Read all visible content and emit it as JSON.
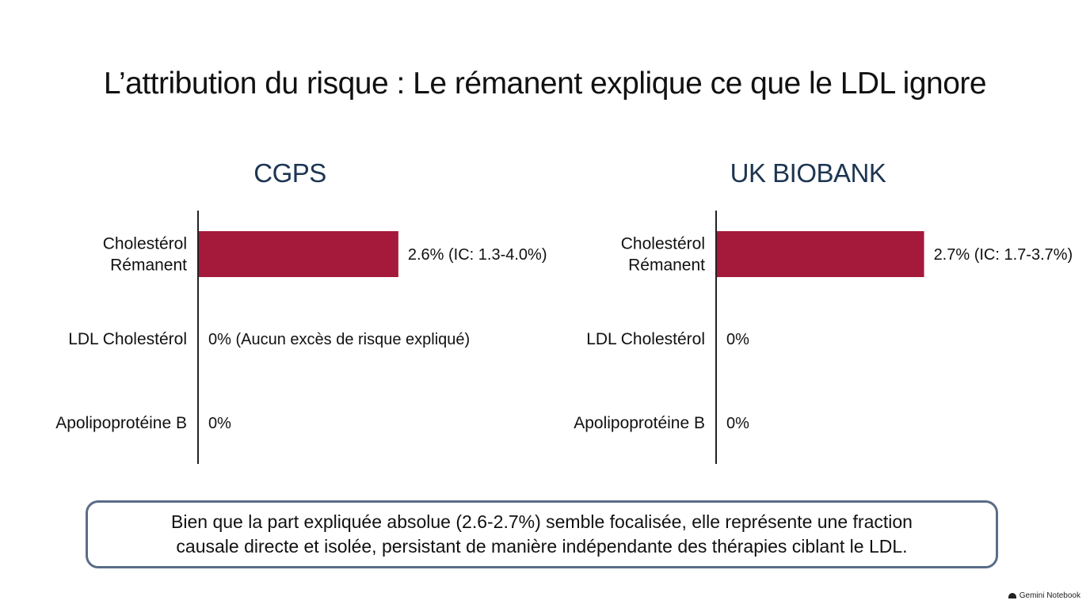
{
  "title": "L’attribution du risque : Le rémanent explique ce que le LDL ignore",
  "chart_data": [
    {
      "type": "bar",
      "orientation": "horizontal",
      "title": "CGPS",
      "categories": [
        [
          "Cholestérol",
          "Rémanent"
        ],
        [
          "LDL Cholestérol"
        ],
        [
          "Apolipoprotéine B"
        ]
      ],
      "values": [
        2.6,
        0,
        0
      ],
      "value_labels": [
        "2.6% (IC: 1.3-4.0%)",
        "0% (Aucun excès de risque expliqué)",
        "0%"
      ],
      "xlim": [
        0,
        3.2
      ],
      "grid": false,
      "bar_color": "#a5193a"
    },
    {
      "type": "bar",
      "orientation": "horizontal",
      "title": "UK BIOBANK",
      "categories": [
        [
          "Cholestérol",
          "Rémanent"
        ],
        [
          "LDL Cholestérol"
        ],
        [
          "Apolipoprotéine B"
        ]
      ],
      "values": [
        2.7,
        0,
        0
      ],
      "value_labels": [
        "2.7% (IC: 1.7-3.7%)",
        "0%",
        "0%"
      ],
      "xlim": [
        0,
        3.2
      ],
      "grid": false,
      "bar_color": "#a5193a"
    }
  ],
  "note": {
    "line1": "Bien que la part expliquée absolue (2.6-2.7%) semble focalisée, elle représente une fraction",
    "line2": "causale directe et isolée, persistant de manière indépendante des thérapies ciblant le LDL."
  },
  "brand": {
    "label": "Gemini Notebook",
    "icon": "gemini-notebook-icon"
  },
  "colors": {
    "panel_title": "#1d3552",
    "axis": "#222222",
    "note_border": "#5a6c88"
  }
}
